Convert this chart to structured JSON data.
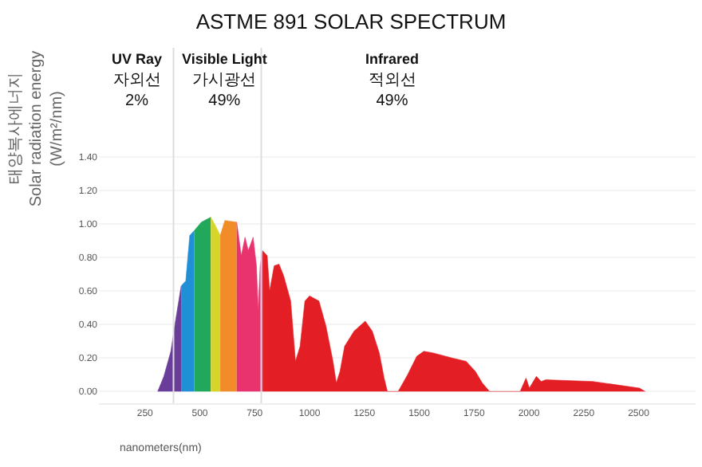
{
  "chart_data": {
    "type": "area",
    "title": "ASTME 891 SOLAR SPECTRUM",
    "xlabel": "nanometers(nm)",
    "ylabel": "태양복사에너지\nSolar radiation energy\n(W/m²/nm)",
    "annotations": [
      "UV Ray\n자외선\n2%",
      "Visible Light\n가시광선\n49%",
      "Infrared\n적외선\n49%"
    ],
    "xlim": [
      40,
      2760
    ],
    "xticks": [
      250,
      500,
      750,
      1000,
      1250,
      1500,
      1750,
      2000,
      2250,
      2500
    ],
    "ylim": [
      -0.07,
      2.05
    ],
    "yticks": [
      {
        "value": 0,
        "label": "0.00"
      },
      {
        "value": 0.2,
        "label": "0.20"
      },
      {
        "value": 0.4,
        "label": "0.40"
      },
      {
        "value": 0.6,
        "label": "0.60"
      },
      {
        "value": 0.8,
        "label": "0.80"
      },
      {
        "value": 1.0,
        "label": "1.00"
      },
      {
        "value": 1.2,
        "label": "1.20"
      },
      {
        "value": 1.4,
        "label": "1.40"
      }
    ],
    "grid": "y",
    "ref_lines": [
      {
        "axis": "x",
        "value": 380,
        "color": "#dddddd"
      },
      {
        "axis": "x",
        "value": 780,
        "color": "#dddddd"
      }
    ],
    "series": [
      {
        "color": "#6a3d9a",
        "x": [
          308,
          336,
          368,
          389,
          415
        ],
        "values": [
          0,
          0.09,
          0.24,
          0.42,
          0.63
        ]
      },
      {
        "color": "#1f8fd6",
        "x": [
          415,
          436,
          454,
          475
        ],
        "values": [
          0.63,
          0.66,
          0.93,
          0.96
        ]
      },
      {
        "color": "#22a85a",
        "x": [
          475,
          507,
          550
        ],
        "values": [
          0.96,
          1.01,
          1.04
        ]
      },
      {
        "color": "#d7d52a",
        "x": [
          550,
          571,
          593
        ],
        "values": [
          1.04,
          0.99,
          0.93
        ]
      },
      {
        "color": "#f28c28",
        "x": [
          593,
          614,
          668
        ],
        "values": [
          0.93,
          1.02,
          1.01
        ]
      },
      {
        "color": "#e8336e",
        "x": [
          668,
          689,
          706,
          721,
          743,
          758,
          766,
          775,
          786
        ],
        "values": [
          1.01,
          0.81,
          0.92,
          0.84,
          0.92,
          0.75,
          0.48,
          0.75,
          0.84
        ]
      },
      {
        "color": "#e31e24",
        "x": [
          786,
          807,
          818,
          839,
          861,
          882,
          914,
          936,
          957,
          979,
          1000,
          1043,
          1075,
          1107,
          1122,
          1139,
          1160,
          1203,
          1254,
          1286,
          1318,
          1340,
          1355,
          1404,
          1447,
          1489,
          1521,
          1564,
          1650,
          1714,
          1756,
          1788,
          1821,
          1960,
          1987,
          2002,
          2034,
          2056,
          2077,
          2291,
          2398,
          2504,
          2530
        ],
        "values": [
          0.84,
          0.81,
          0.6,
          0.75,
          0.76,
          0.69,
          0.54,
          0.18,
          0.27,
          0.54,
          0.57,
          0.54,
          0.39,
          0.18,
          0.05,
          0.12,
          0.27,
          0.36,
          0.42,
          0.36,
          0.23,
          0.08,
          0,
          0,
          0.1,
          0.21,
          0.24,
          0.23,
          0.2,
          0.18,
          0.12,
          0.05,
          0,
          0,
          0.08,
          0.02,
          0.09,
          0.06,
          0.07,
          0.06,
          0.04,
          0.02,
          0
        ]
      }
    ]
  }
}
